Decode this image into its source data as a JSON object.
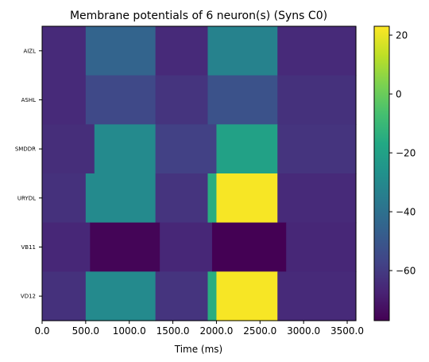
{
  "chart_data": {
    "type": "heatmap",
    "title": "Membrane potentials of 6 neuron(s) (Syns C0)",
    "xlabel": "Time (ms)",
    "ylabel": "",
    "xlim": [
      0,
      3600
    ],
    "x_ticks": [
      0,
      500,
      1000,
      1500,
      2000,
      2500,
      3000,
      3500
    ],
    "x_tick_labels": [
      "0.0",
      "500.0",
      "1000.0",
      "1500.0",
      "2000.0",
      "2500.0",
      "3000.0",
      "3500.0"
    ],
    "rows": [
      "AIZL",
      "ASHL",
      "SMDDR",
      "URYDL",
      "VB11",
      "VD12"
    ],
    "colorbar": {
      "colormap": "viridis",
      "min": -77,
      "max": 23,
      "ticks": [
        20,
        0,
        -20,
        -40,
        -60
      ],
      "tick_labels": [
        "20",
        "0",
        "−20",
        "−40",
        "−60"
      ]
    },
    "segments": [
      [
        [
          0,
          500,
          -65
        ],
        [
          500,
          1300,
          -45
        ],
        [
          1300,
          1900,
          -65
        ],
        [
          1900,
          2700,
          -33
        ],
        [
          2700,
          3600,
          -65
        ]
      ],
      [
        [
          0,
          500,
          -65
        ],
        [
          500,
          1300,
          -55
        ],
        [
          1300,
          1900,
          -62
        ],
        [
          1900,
          2700,
          -52
        ],
        [
          2700,
          3600,
          -63
        ]
      ],
      [
        [
          0,
          600,
          -64
        ],
        [
          600,
          1300,
          -30
        ],
        [
          1300,
          2000,
          -58
        ],
        [
          2000,
          2700,
          -20
        ],
        [
          2700,
          3600,
          -62
        ]
      ],
      [
        [
          0,
          500,
          -63
        ],
        [
          500,
          1300,
          -30
        ],
        [
          1300,
          1900,
          -62
        ],
        [
          1900,
          2000,
          -15
        ],
        [
          2000,
          2700,
          22
        ],
        [
          2700,
          3600,
          -65
        ]
      ],
      [
        [
          0,
          550,
          -66
        ],
        [
          550,
          1350,
          -76
        ],
        [
          1350,
          1950,
          -66
        ],
        [
          1950,
          2800,
          -77
        ],
        [
          2800,
          3600,
          -66
        ]
      ],
      [
        [
          0,
          500,
          -63
        ],
        [
          500,
          1300,
          -30
        ],
        [
          1300,
          1900,
          -62
        ],
        [
          1900,
          2000,
          -15
        ],
        [
          2000,
          2700,
          22
        ],
        [
          2700,
          3600,
          -65
        ]
      ]
    ]
  }
}
